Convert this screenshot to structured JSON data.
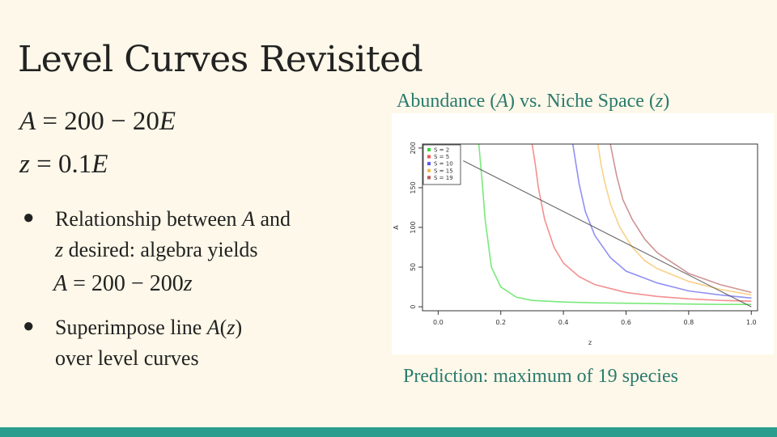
{
  "slide": {
    "title": "Level Curves Revisited",
    "eq1": {
      "lhs": "A",
      "rhs": " = 200 − 20",
      "var": "E"
    },
    "eq2": {
      "lhs": "z",
      "rhs": " = 0.1",
      "var": "E"
    },
    "bullet1": {
      "text_a": "Relationship between ",
      "var_a": "A",
      "text_b": " and",
      "var_z": "z",
      "text_c": " desired: algebra yields",
      "equation": {
        "lhs": "A",
        "rhs": " = 200 − 200",
        "var": "z"
      }
    },
    "bullet2": {
      "text_a": "Superimpose line ",
      "func": "A",
      "paren_open": "(",
      "arg": "z",
      "paren_close": ")",
      "text_b": "over level curves"
    },
    "chart_caption": {
      "text_a": "Abundance (",
      "var_a": "A",
      "text_b": ") vs. Niche Space (",
      "var_z": "z",
      "text_c": ")"
    },
    "prediction": "Prediction: maximum of 19 species",
    "accent_color": "#2a7a6e",
    "footer_color": "#2a9d8f"
  },
  "chart_data": {
    "type": "line",
    "xlabel": "z",
    "ylabel": "A",
    "xlim": [
      -0.05,
      1.02
    ],
    "ylim": [
      -5,
      205
    ],
    "x_ticks": [
      0.0,
      0.2,
      0.4,
      0.6,
      0.8,
      1.0
    ],
    "x_tick_labels": [
      "0.0",
      "0.2",
      "0.4",
      "0.6",
      "0.8",
      "1.0"
    ],
    "y_ticks": [
      0,
      50,
      100,
      150,
      200
    ],
    "y_tick_labels": [
      "0",
      "50",
      "100",
      "150",
      "200"
    ],
    "legend_position": "top-left",
    "grid": false,
    "series": [
      {
        "name": "S = 2",
        "color": "#33dd33",
        "x": [
          0.13,
          0.14,
          0.15,
          0.17,
          0.2,
          0.25,
          0.3,
          0.4,
          0.5,
          0.6,
          0.7,
          0.8,
          0.9,
          1.0
        ],
        "y": [
          205,
          160,
          110,
          50,
          25,
          12,
          8,
          6,
          5,
          4.5,
          4,
          3.5,
          3,
          3
        ]
      },
      {
        "name": "S = 5",
        "color": "#ee5555",
        "x": [
          0.3,
          0.31,
          0.32,
          0.34,
          0.37,
          0.4,
          0.45,
          0.5,
          0.6,
          0.7,
          0.8,
          0.9,
          1.0
        ],
        "y": [
          205,
          180,
          150,
          110,
          75,
          55,
          38,
          28,
          18,
          13,
          10,
          8,
          7
        ]
      },
      {
        "name": "S = 10",
        "color": "#5555ee",
        "x": [
          0.43,
          0.44,
          0.45,
          0.47,
          0.5,
          0.55,
          0.6,
          0.7,
          0.8,
          0.9,
          1.0
        ],
        "y": [
          205,
          180,
          155,
          120,
          90,
          62,
          45,
          30,
          20,
          15,
          11
        ]
      },
      {
        "name": "S = 15",
        "color": "#f5b94a",
        "x": [
          0.51,
          0.52,
          0.53,
          0.55,
          0.58,
          0.62,
          0.66,
          0.7,
          0.8,
          0.9,
          1.0
        ],
        "y": [
          205,
          180,
          160,
          130,
          100,
          75,
          58,
          48,
          32,
          22,
          15
        ]
      },
      {
        "name": "S = 19",
        "color": "#b55a5a",
        "x": [
          0.55,
          0.56,
          0.57,
          0.59,
          0.62,
          0.66,
          0.7,
          0.75,
          0.8,
          0.9,
          1.0
        ],
        "y": [
          205,
          185,
          165,
          135,
          110,
          85,
          68,
          55,
          42,
          28,
          18
        ]
      },
      {
        "name": "",
        "color": "#555555",
        "x": [
          0.08,
          1.0
        ],
        "y": [
          184,
          0
        ]
      }
    ]
  }
}
